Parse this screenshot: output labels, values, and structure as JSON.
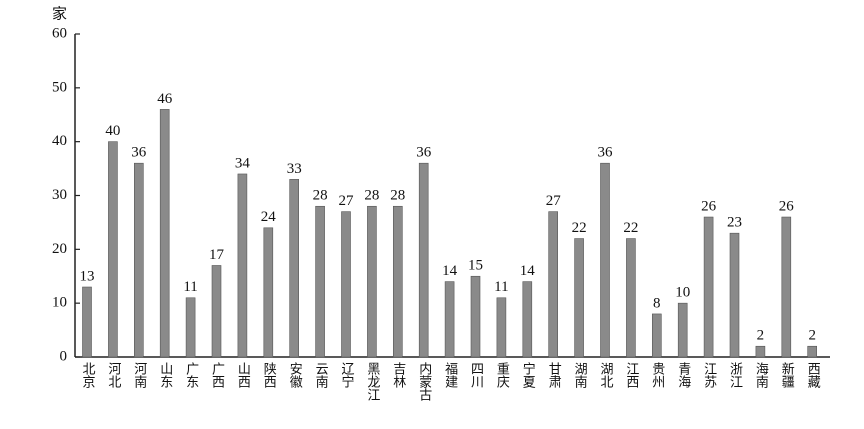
{
  "chart_data": {
    "type": "bar",
    "y_label": "家",
    "categories": [
      "北京",
      "河北",
      "河南",
      "山东",
      "广东",
      "广西",
      "山西",
      "陕西",
      "安徽",
      "云南",
      "辽宁",
      "黑龙江",
      "吉林",
      "内蒙古",
      "福建",
      "四川",
      "重庆",
      "宁夏",
      "甘肃",
      "湖南",
      "湖北",
      "江西",
      "贵州",
      "青海",
      "江苏",
      "浙江",
      "海南",
      "新疆",
      "西藏"
    ],
    "values": [
      13,
      40,
      36,
      46,
      11,
      17,
      34,
      24,
      33,
      28,
      27,
      28,
      28,
      36,
      14,
      15,
      11,
      14,
      27,
      22,
      36,
      22,
      8,
      10,
      26,
      23,
      2,
      26,
      2
    ],
    "color": "#8a8a8a",
    "ylim": [
      0,
      60
    ],
    "yticks": [
      0,
      10,
      20,
      30,
      40,
      50,
      60
    ]
  }
}
